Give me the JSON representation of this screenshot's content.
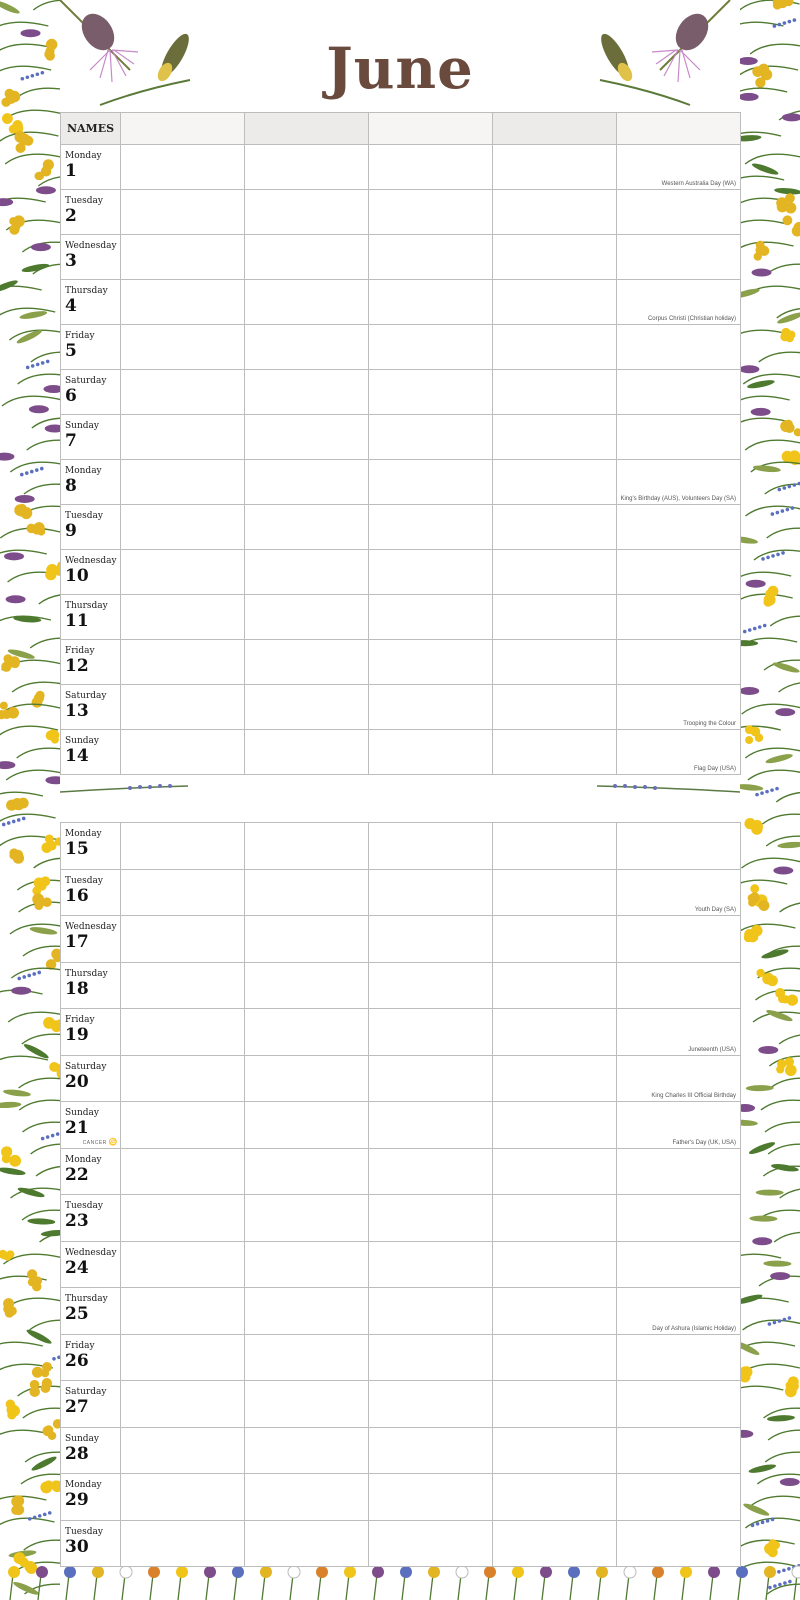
{
  "month": "June",
  "names_label": "NAMES",
  "zodiac": {
    "sign": "CANCER",
    "icon": "cancer-zodiac-icon",
    "day": 21
  },
  "colors": {
    "title": "#6b4a3e",
    "grid_line": "#bdbdbd",
    "header_alt": "#ecebea"
  },
  "decoration_icons": [
    "thistle-flower-icon",
    "yellow-tansy-icon",
    "purple-bud-icon",
    "lavender-sprig-icon",
    "buttercup-icon",
    "daisy-icon"
  ],
  "days": [
    {
      "day": "Monday",
      "date": "1",
      "note": "Western Australia Day (WA)"
    },
    {
      "day": "Tuesday",
      "date": "2",
      "note": ""
    },
    {
      "day": "Wednesday",
      "date": "3",
      "note": ""
    },
    {
      "day": "Thursday",
      "date": "4",
      "note": "Corpus Christi (Christian holiday)"
    },
    {
      "day": "Friday",
      "date": "5",
      "note": ""
    },
    {
      "day": "Saturday",
      "date": "6",
      "note": ""
    },
    {
      "day": "Sunday",
      "date": "7",
      "note": ""
    },
    {
      "day": "Monday",
      "date": "8",
      "note": "King's Birthday (AUS), Volunteers Day (SA)"
    },
    {
      "day": "Tuesday",
      "date": "9",
      "note": ""
    },
    {
      "day": "Wednesday",
      "date": "10",
      "note": ""
    },
    {
      "day": "Thursday",
      "date": "11",
      "note": ""
    },
    {
      "day": "Friday",
      "date": "12",
      "note": ""
    },
    {
      "day": "Saturday",
      "date": "13",
      "note": "Trooping the Colour"
    },
    {
      "day": "Sunday",
      "date": "14",
      "note": "Flag Day (USA)"
    },
    {
      "day": "Monday",
      "date": "15",
      "note": ""
    },
    {
      "day": "Tuesday",
      "date": "16",
      "note": "Youth Day (SA)"
    },
    {
      "day": "Wednesday",
      "date": "17",
      "note": ""
    },
    {
      "day": "Thursday",
      "date": "18",
      "note": ""
    },
    {
      "day": "Friday",
      "date": "19",
      "note": "Juneteenth (USA)"
    },
    {
      "day": "Saturday",
      "date": "20",
      "note": "King Charles III Official Birthday"
    },
    {
      "day": "Sunday",
      "date": "21",
      "note": "Father's Day (UK, USA)"
    },
    {
      "day": "Monday",
      "date": "22",
      "note": ""
    },
    {
      "day": "Tuesday",
      "date": "23",
      "note": ""
    },
    {
      "day": "Wednesday",
      "date": "24",
      "note": ""
    },
    {
      "day": "Thursday",
      "date": "25",
      "note": "Day of Ashura (Islamic Holiday)"
    },
    {
      "day": "Friday",
      "date": "26",
      "note": ""
    },
    {
      "day": "Saturday",
      "date": "27",
      "note": ""
    },
    {
      "day": "Sunday",
      "date": "28",
      "note": ""
    },
    {
      "day": "Monday",
      "date": "29",
      "note": ""
    },
    {
      "day": "Tuesday",
      "date": "30",
      "note": ""
    }
  ]
}
